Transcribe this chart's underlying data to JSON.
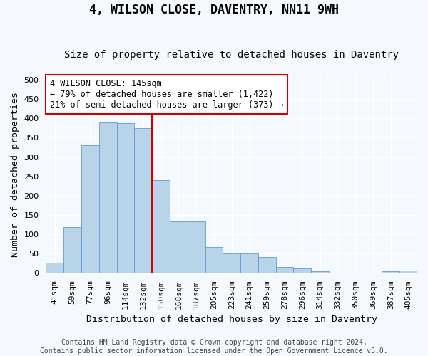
{
  "title": "4, WILSON CLOSE, DAVENTRY, NN11 9WH",
  "subtitle": "Size of property relative to detached houses in Daventry",
  "xlabel": "Distribution of detached houses by size in Daventry",
  "ylabel": "Number of detached properties",
  "footer_line1": "Contains HM Land Registry data © Crown copyright and database right 2024.",
  "footer_line2": "Contains public sector information licensed under the Open Government Licence v3.0.",
  "bar_labels": [
    "41sqm",
    "59sqm",
    "77sqm",
    "96sqm",
    "114sqm",
    "132sqm",
    "150sqm",
    "168sqm",
    "187sqm",
    "205sqm",
    "223sqm",
    "241sqm",
    "259sqm",
    "278sqm",
    "296sqm",
    "314sqm",
    "332sqm",
    "350sqm",
    "369sqm",
    "387sqm",
    "405sqm"
  ],
  "bar_values": [
    27,
    118,
    330,
    390,
    388,
    375,
    240,
    133,
    133,
    68,
    50,
    50,
    42,
    15,
    11,
    5,
    0,
    0,
    0,
    5,
    7
  ],
  "bar_color": "#b8d4e8",
  "bar_edge_color": "#6699cc",
  "ylim": [
    0,
    510
  ],
  "yticks": [
    0,
    50,
    100,
    150,
    200,
    250,
    300,
    350,
    400,
    450,
    500
  ],
  "vline_x": 5.5,
  "vline_color": "#cc0000",
  "annotation_text": "4 WILSON CLOSE: 145sqm\n← 79% of detached houses are smaller (1,422)\n21% of semi-detached houses are larger (373) →",
  "annotation_box_color": "#ffffff",
  "annotation_box_edge": "#cc0000",
  "bg_color": "#f5f8fc",
  "plot_bg_color": "#f5f8fc",
  "grid_color": "#ffffff",
  "title_fontsize": 12,
  "subtitle_fontsize": 10,
  "axis_label_fontsize": 9.5,
  "tick_fontsize": 8,
  "annotation_fontsize": 8.5,
  "footer_fontsize": 7
}
